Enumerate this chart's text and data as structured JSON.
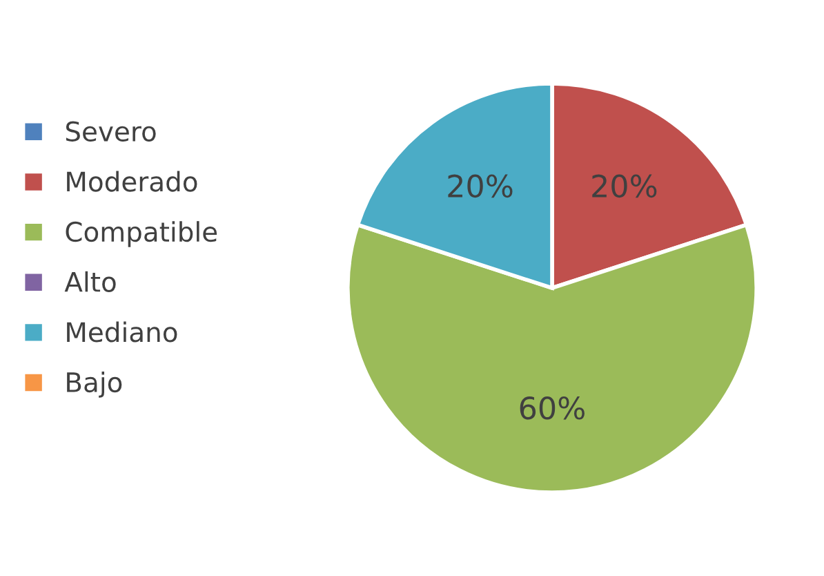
{
  "chart_data": {
    "type": "pie",
    "categories": [
      "Severo",
      "Moderado",
      "Compatible",
      "Alto",
      "Mediano",
      "Bajo"
    ],
    "values": [
      0,
      20,
      60,
      0,
      20,
      0
    ],
    "colors": [
      "#4f81bd",
      "#c0504d",
      "#9bbb59",
      "#8064a2",
      "#4bacc6",
      "#f79646"
    ],
    "value_labels": [
      null,
      "20%",
      "60%",
      null,
      "20%",
      null
    ],
    "legend": "left"
  }
}
